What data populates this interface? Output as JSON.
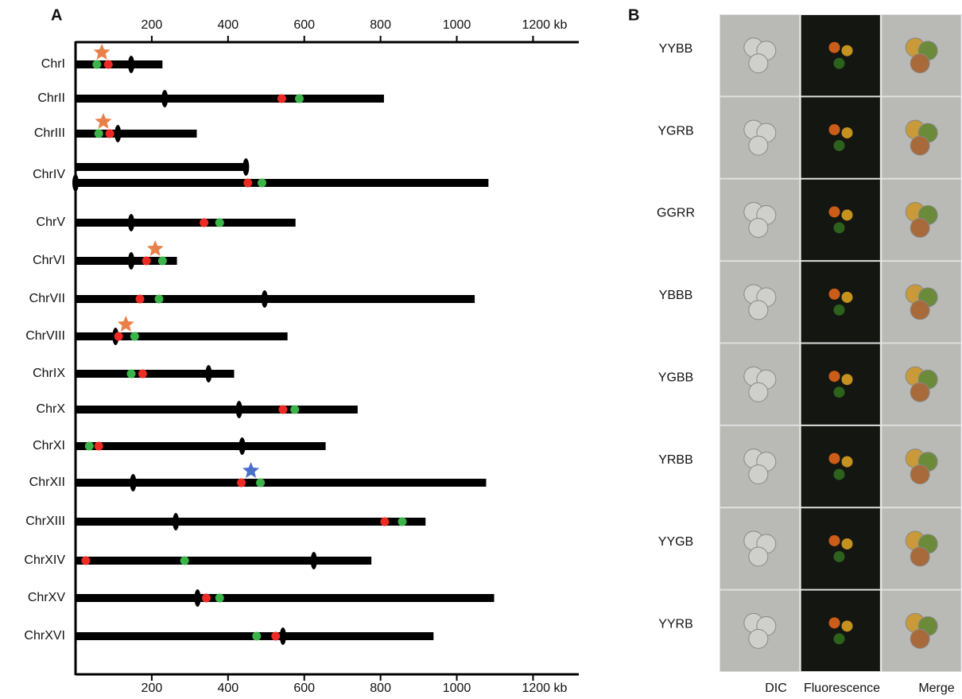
{
  "panel_a": {
    "label": "A",
    "xlim": [
      0,
      1320
    ],
    "xticks": [
      200,
      400,
      600,
      800,
      1000,
      {
        "value": 1200,
        "label": "1200 kb"
      }
    ],
    "red_color": "#ee2a24",
    "green_color": "#3bb54a",
    "centromere_color": "#000000",
    "chromosomes": [
      {
        "name": "ChrI",
        "bars": [
          {
            "length": 228,
            "centromere": 146
          }
        ],
        "red": 86,
        "green": 56,
        "star": 69,
        "star_color": "#e8804a"
      },
      {
        "name": "ChrII",
        "bars": [
          {
            "length": 809,
            "centromere": 234
          }
        ],
        "red": 541,
        "green": 587
      },
      {
        "name": "ChrIII",
        "bars": [
          {
            "length": 318,
            "centromere": 111
          }
        ],
        "red": 90,
        "green": 61,
        "star": 73,
        "star_color": "#e8804a"
      },
      {
        "name": "ChrIV",
        "bars": [
          {
            "length": 447,
            "centromere": 447
          },
          {
            "length": 1083,
            "centromere": 0
          }
        ],
        "red": 452,
        "green": 489
      },
      {
        "name": "ChrV",
        "bars": [
          {
            "length": 577,
            "centromere": 146
          }
        ],
        "red": 337,
        "green": 378
      },
      {
        "name": "ChrVI",
        "bars": [
          {
            "length": 266,
            "centromere": 146
          }
        ],
        "red": 186,
        "green": 228,
        "star": 209,
        "star_color": "#e8804a"
      },
      {
        "name": "ChrVII",
        "bars": [
          {
            "length": 1047,
            "centromere": 496
          }
        ],
        "red": 169,
        "green": 219
      },
      {
        "name": "ChrVIII",
        "bars": [
          {
            "length": 556,
            "centromere": 105
          }
        ],
        "red": 113,
        "green": 155,
        "star": 132,
        "star_color": "#e8804a"
      },
      {
        "name": "ChrIX",
        "bars": [
          {
            "length": 416,
            "centromere": 349
          }
        ],
        "red": 176,
        "green": 146
      },
      {
        "name": "ChrX",
        "bars": [
          {
            "length": 740,
            "centromere": 429
          }
        ],
        "red": 544,
        "green": 575
      },
      {
        "name": "ChrXI",
        "bars": [
          {
            "length": 656,
            "centromere": 437
          }
        ],
        "red": 61,
        "green": 36
      },
      {
        "name": "ChrXII",
        "bars": [
          {
            "length": 1077,
            "centromere": 151
          }
        ],
        "red": 435,
        "green": 485,
        "star": 460,
        "star_color": "#4a6fc9"
      },
      {
        "name": "ChrXIII",
        "bars": [
          {
            "length": 918,
            "centromere": 263
          }
        ],
        "red": 811,
        "green": 857
      },
      {
        "name": "ChrXIV",
        "bars": [
          {
            "length": 776,
            "centromere": 625
          }
        ],
        "red": 27,
        "green": 286
      },
      {
        "name": "ChrXV",
        "bars": [
          {
            "length": 1098,
            "centromere": 320
          }
        ],
        "red": 343,
        "green": 378
      },
      {
        "name": "ChrXVI",
        "bars": [
          {
            "length": 939,
            "centromere": 544
          }
        ],
        "red": 525,
        "green": 475
      }
    ]
  },
  "panel_b": {
    "label": "B",
    "rows": [
      "YYBB",
      "YGRB",
      "GGRR",
      "YBBB",
      "YGBB",
      "YRBB",
      "YYGB",
      "YYRB"
    ],
    "columns": [
      "DIC",
      "Fluorescence",
      "Merge"
    ]
  }
}
